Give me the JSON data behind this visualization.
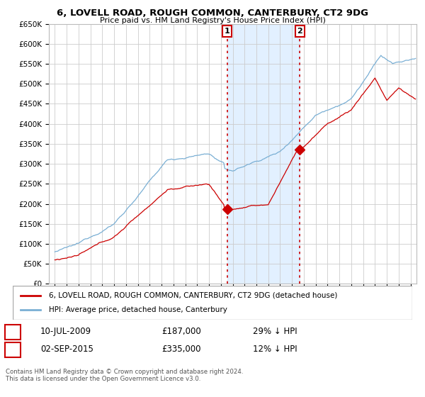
{
  "title": "6, LOVELL ROAD, ROUGH COMMON, CANTERBURY, CT2 9DG",
  "subtitle": "Price paid vs. HM Land Registry's House Price Index (HPI)",
  "ylim": [
    0,
    650000
  ],
  "yticks": [
    0,
    50000,
    100000,
    150000,
    200000,
    250000,
    300000,
    350000,
    400000,
    450000,
    500000,
    550000,
    600000,
    650000
  ],
  "ytick_labels": [
    "£0",
    "£50K",
    "£100K",
    "£150K",
    "£200K",
    "£250K",
    "£300K",
    "£350K",
    "£400K",
    "£450K",
    "£500K",
    "£550K",
    "£600K",
    "£650K"
  ],
  "sale1_date": 2009.53,
  "sale1_price": 187000,
  "sale1_label": "1",
  "sale1_text": "10-JUL-2009",
  "sale1_price_text": "£187,000",
  "sale1_pct": "29% ↓ HPI",
  "sale2_date": 2015.67,
  "sale2_price": 335000,
  "sale2_label": "2",
  "sale2_text": "02-SEP-2015",
  "sale2_price_text": "£335,000",
  "sale2_pct": "12% ↓ HPI",
  "legend_line1": "6, LOVELL ROAD, ROUGH COMMON, CANTERBURY, CT2 9DG (detached house)",
  "legend_line2": "HPI: Average price, detached house, Canterbury",
  "footer": "Contains HM Land Registry data © Crown copyright and database right 2024.\nThis data is licensed under the Open Government Licence v3.0.",
  "line_color_red": "#cc0000",
  "line_color_blue": "#7aafd4",
  "background_color": "#ffffff",
  "plot_bg_color": "#ffffff",
  "grid_color": "#cccccc",
  "shade_color": "#ddeeff",
  "xlim_left": 1994.5,
  "xlim_right": 2025.5
}
